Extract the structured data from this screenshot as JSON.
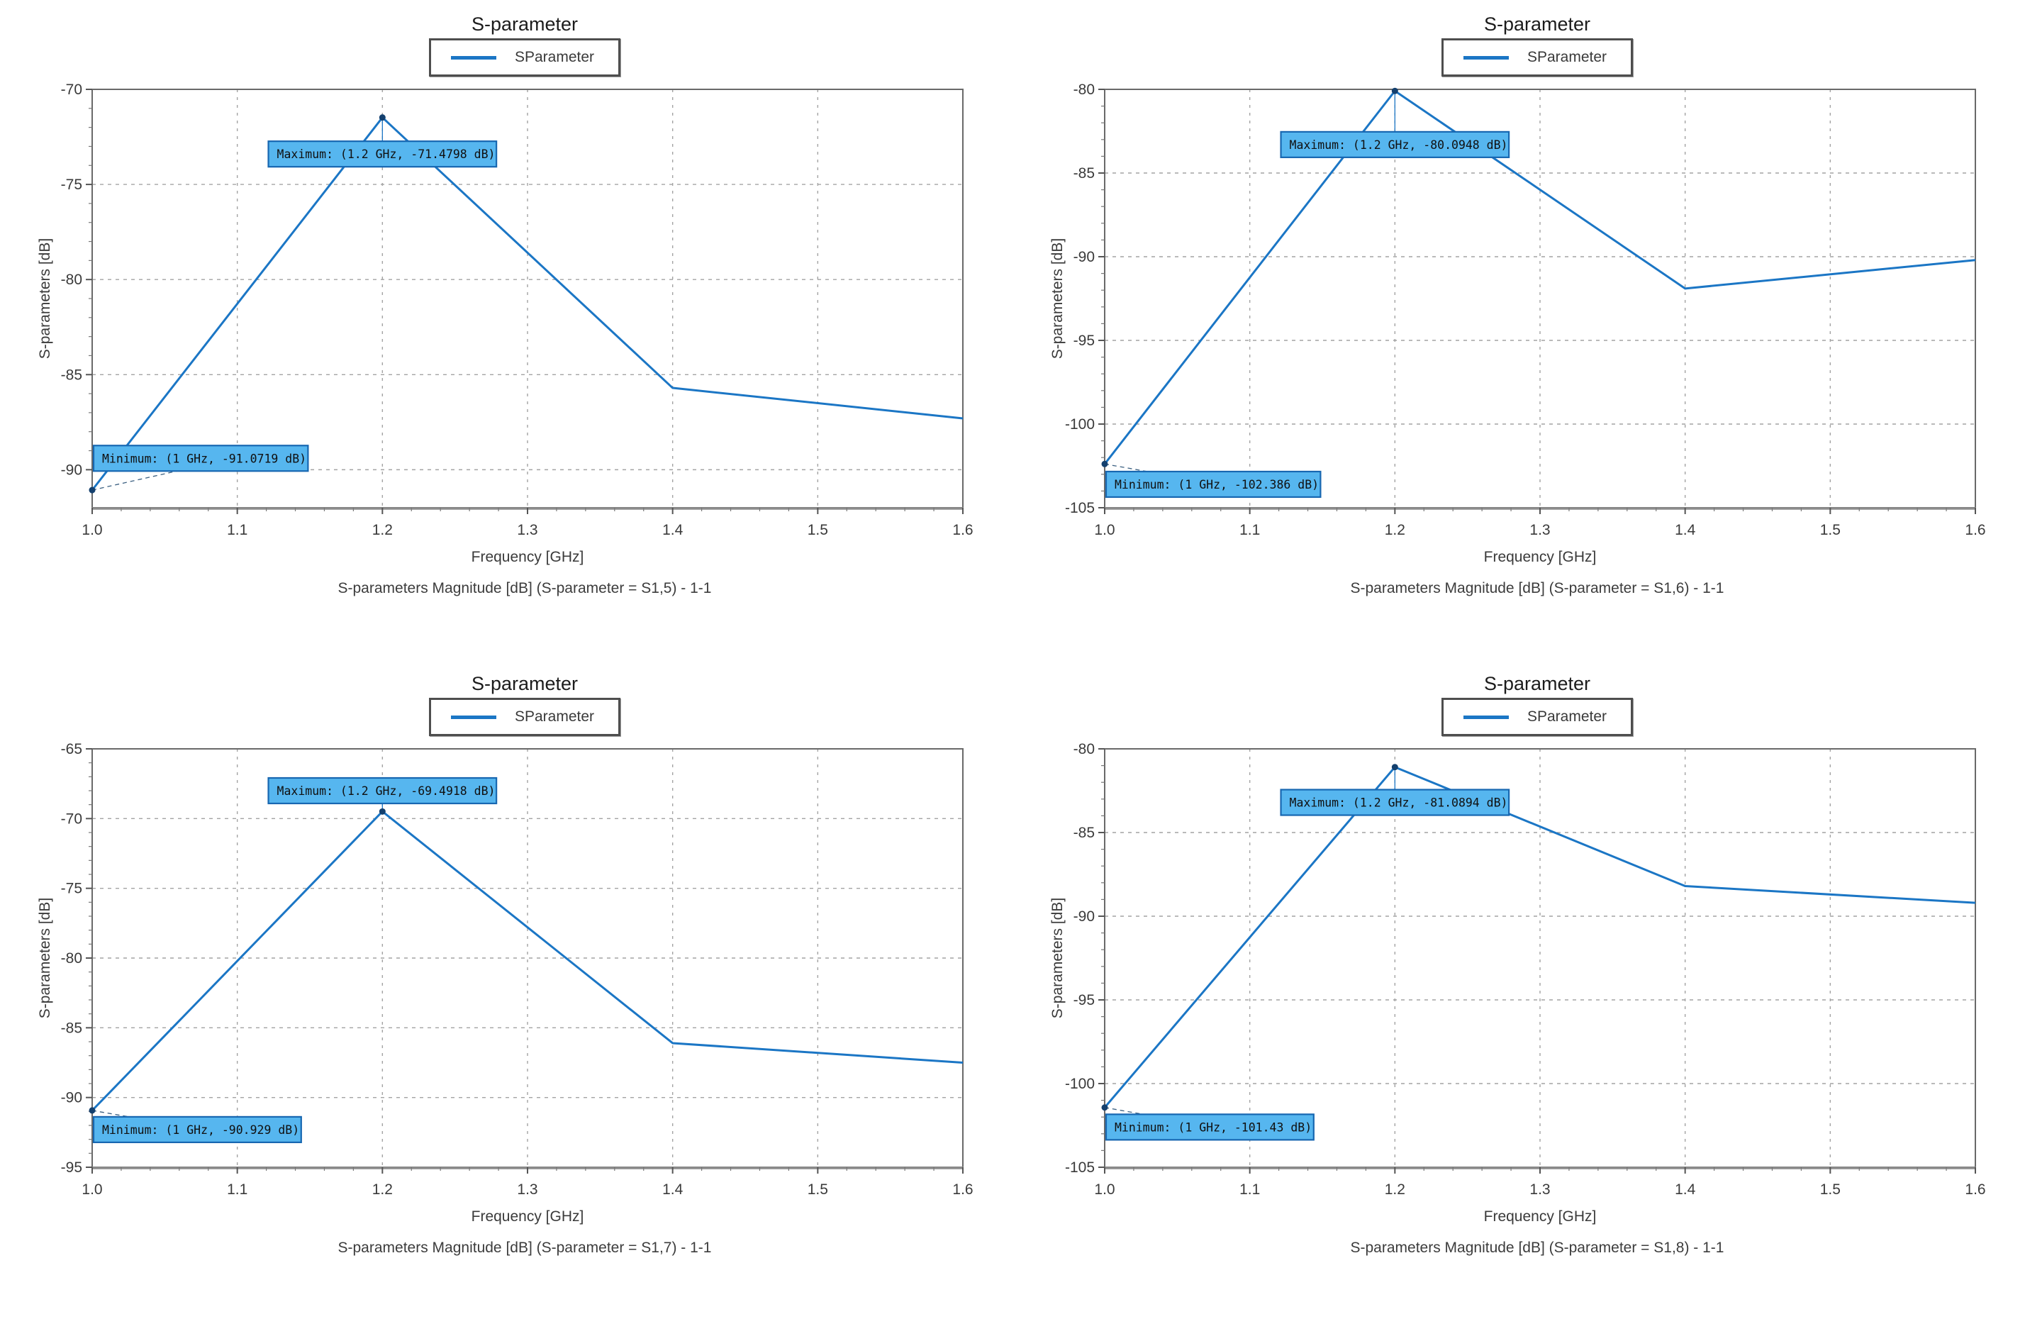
{
  "colors": {
    "line": "#1b76c5",
    "marker": "#14406e",
    "annotation_fill": "#56b6ef",
    "annotation_border": "#1767b1",
    "annotation_text": "#101010",
    "grid": "#a3a3a3",
    "frame": "#696969",
    "axis_bottom": "#8c8c8c",
    "tick_text": "#3a3a3a",
    "leader_min": "#3a5f80"
  },
  "chart_data": [
    {
      "type": "line",
      "title": "S-parameter",
      "legend": [
        "SParameter"
      ],
      "legend_position": "top-center",
      "xlabel": "Frequency [GHz]",
      "ylabel": "S-parameters [dB]",
      "caption": "S-parameters Magnitude [dB] (S-parameter = S1,5) - 1-1",
      "xlim": [
        1.0,
        1.6
      ],
      "ylim": [
        -92,
        -70
      ],
      "xticks": [
        1.0,
        1.1,
        1.2,
        1.3,
        1.4,
        1.5,
        1.6
      ],
      "xtick_labels": [
        "1.0",
        "1.1",
        "1.2",
        "1.3",
        "1.4",
        "1.5",
        "1.6"
      ],
      "yticks": [
        -70,
        -75,
        -80,
        -85,
        -90
      ],
      "ytick_labels": [
        "-70",
        "-75",
        "-80",
        "-85",
        "-90"
      ],
      "grid": true,
      "series": [
        {
          "name": "SParameter",
          "x": [
            1.0,
            1.2,
            1.4,
            1.6
          ],
          "y": [
            -91.0719,
            -71.4798,
            -85.7,
            -87.3
          ]
        }
      ],
      "annotations": [
        {
          "kind": "maximum",
          "label": "Maximum: (1.2 GHz, -71.4798 dB)",
          "point": {
            "x": 1.2,
            "y": -71.4798
          },
          "box_center_y": -73.4
        },
        {
          "kind": "minimum",
          "label": "Minimum: (1 GHz, -91.0719 dB)",
          "point": {
            "x": 1.0,
            "y": -91.0719
          },
          "box_center_y": -89.4
        }
      ]
    },
    {
      "type": "line",
      "title": "S-parameter",
      "legend": [
        "SParameter"
      ],
      "legend_position": "top-center",
      "xlabel": "Frequency [GHz]",
      "ylabel": "S-parameters [dB]",
      "caption": "S-parameters Magnitude [dB] (S-parameter = S1,6) - 1-1",
      "xlim": [
        1.0,
        1.6
      ],
      "ylim": [
        -105,
        -80
      ],
      "xticks": [
        1.0,
        1.1,
        1.2,
        1.3,
        1.4,
        1.5,
        1.6
      ],
      "xtick_labels": [
        "1.0",
        "1.1",
        "1.2",
        "1.3",
        "1.4",
        "1.5",
        "1.6"
      ],
      "yticks": [
        -80,
        -85,
        -90,
        -95,
        -100,
        -105
      ],
      "ytick_labels": [
        "-80",
        "-85",
        "-90",
        "-95",
        "-100",
        "-105"
      ],
      "grid": true,
      "series": [
        {
          "name": "SParameter",
          "x": [
            1.0,
            1.2,
            1.4,
            1.6
          ],
          "y": [
            -102.386,
            -80.0948,
            -91.9,
            -90.2
          ]
        }
      ],
      "annotations": [
        {
          "kind": "maximum",
          "label": "Maximum: (1.2 GHz, -80.0948 dB)",
          "point": {
            "x": 1.2,
            "y": -80.0948
          },
          "box_center_y": -83.3
        },
        {
          "kind": "minimum",
          "label": "Minimum: (1 GHz, -102.386 dB)",
          "point": {
            "x": 1.0,
            "y": -102.386
          },
          "box_center_y": -103.6
        }
      ]
    },
    {
      "type": "line",
      "title": "S-parameter",
      "legend": [
        "SParameter"
      ],
      "legend_position": "top-center",
      "xlabel": "Frequency [GHz]",
      "ylabel": "S-parameters [dB]",
      "caption": "S-parameters Magnitude [dB] (S-parameter = S1,7) - 1-1",
      "xlim": [
        1.0,
        1.6
      ],
      "ylim": [
        -95,
        -65
      ],
      "xticks": [
        1.0,
        1.1,
        1.2,
        1.3,
        1.4,
        1.5,
        1.6
      ],
      "xtick_labels": [
        "1.0",
        "1.1",
        "1.2",
        "1.3",
        "1.4",
        "1.5",
        "1.6"
      ],
      "yticks": [
        -65,
        -70,
        -75,
        -80,
        -85,
        -90,
        -95
      ],
      "ytick_labels": [
        "-65",
        "-70",
        "-75",
        "-80",
        "-85",
        "-90",
        "-95"
      ],
      "grid": true,
      "series": [
        {
          "name": "SParameter",
          "x": [
            1.0,
            1.2,
            1.4,
            1.6
          ],
          "y": [
            -90.929,
            -69.4918,
            -86.1,
            -87.5
          ]
        }
      ],
      "annotations": [
        {
          "kind": "maximum",
          "label": "Maximum: (1.2 GHz, -69.4918 dB)",
          "point": {
            "x": 1.2,
            "y": -69.4918
          },
          "box_center_y": -68.0
        },
        {
          "kind": "minimum",
          "label": "Minimum: (1 GHz, -90.929 dB)",
          "point": {
            "x": 1.0,
            "y": -90.929
          },
          "box_center_y": -92.3
        }
      ]
    },
    {
      "type": "line",
      "title": "S-parameter",
      "legend": [
        "SParameter"
      ],
      "legend_position": "top-center",
      "xlabel": "Frequency [GHz]",
      "ylabel": "S-parameters [dB]",
      "caption": "S-parameters Magnitude [dB] (S-parameter = S1,8) - 1-1",
      "xlim": [
        1.0,
        1.6
      ],
      "ylim": [
        -105,
        -80
      ],
      "xticks": [
        1.0,
        1.1,
        1.2,
        1.3,
        1.4,
        1.5,
        1.6
      ],
      "xtick_labels": [
        "1.0",
        "1.1",
        "1.2",
        "1.3",
        "1.4",
        "1.5",
        "1.6"
      ],
      "yticks": [
        -80,
        -85,
        -90,
        -95,
        -100,
        -105
      ],
      "ytick_labels": [
        "-80",
        "-85",
        "-90",
        "-95",
        "-100",
        "-105"
      ],
      "grid": true,
      "series": [
        {
          "name": "SParameter",
          "x": [
            1.0,
            1.2,
            1.4,
            1.6
          ],
          "y": [
            -101.43,
            -81.0894,
            -88.2,
            -89.2
          ]
        }
      ],
      "annotations": [
        {
          "kind": "maximum",
          "label": "Maximum: (1.2 GHz, -81.0894 dB)",
          "point": {
            "x": 1.2,
            "y": -81.0894
          },
          "box_center_y": -83.2
        },
        {
          "kind": "minimum",
          "label": "Minimum: (1 GHz, -101.43 dB)",
          "point": {
            "x": 1.0,
            "y": -101.43
          },
          "box_center_y": -102.6
        }
      ]
    }
  ]
}
